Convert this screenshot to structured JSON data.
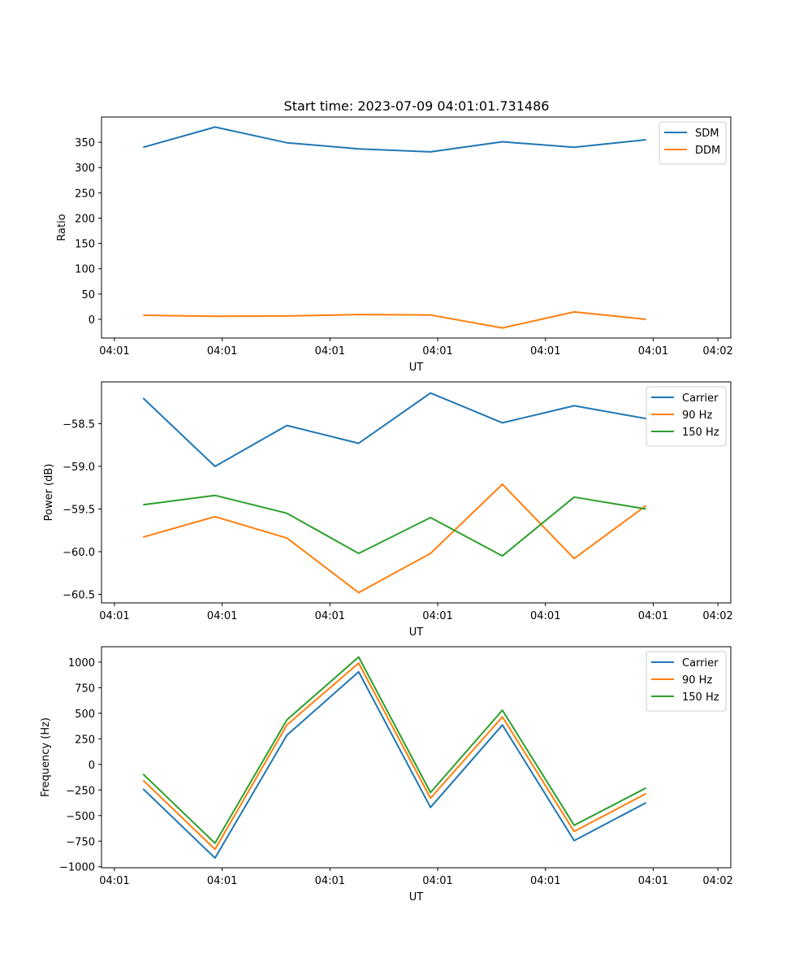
{
  "figure": {
    "title": "Start time: 2023-07-09 04:01:01.731486"
  },
  "colors": {
    "blue": "#1f77b4",
    "orange": "#ff7f0e",
    "green": "#2ca02c"
  },
  "chart_data": [
    {
      "type": "line",
      "title": "Start time: 2023-07-09 04:01:01.731486",
      "xlabel": "UT",
      "ylabel": "Ratio",
      "x": [
        1,
        2,
        3,
        4,
        5,
        6,
        7,
        8
      ],
      "xlim": [
        0.42,
        9.18
      ],
      "xticks": [
        0.6,
        2.1,
        3.6,
        5.1,
        6.6,
        8.1,
        9.0
      ],
      "xticklabels": [
        "04:01",
        "04:01",
        "04:01",
        "04:01",
        "04:01",
        "04:01",
        "04:02"
      ],
      "ylim": [
        -37,
        400
      ],
      "yticks": [
        0,
        50,
        100,
        150,
        200,
        250,
        300,
        350
      ],
      "yticklabels": [
        "0",
        "50",
        "100",
        "150",
        "200",
        "250",
        "300",
        "350"
      ],
      "legend": "top-right",
      "series": [
        {
          "name": "SDM",
          "color": "#1f77b4",
          "values": [
            340,
            380,
            349,
            337,
            331,
            351,
            340,
            355
          ]
        },
        {
          "name": "DDM",
          "color": "#ff7f0e",
          "values": [
            8,
            6,
            6.5,
            9.5,
            8.5,
            -17,
            14.5,
            0
          ]
        }
      ]
    },
    {
      "type": "line",
      "title": "",
      "xlabel": "UT",
      "ylabel": "Power (dB)",
      "x": [
        1,
        2,
        3,
        4,
        5,
        6,
        7,
        8
      ],
      "xlim": [
        0.42,
        9.18
      ],
      "xticks": [
        0.6,
        2.1,
        3.6,
        5.1,
        6.6,
        8.1,
        9.0
      ],
      "xticklabels": [
        "04:01",
        "04:01",
        "04:01",
        "04:01",
        "04:01",
        "04:01",
        "04:02"
      ],
      "ylim": [
        -60.6,
        -58.01
      ],
      "yticks": [
        -60.5,
        -60.0,
        -59.5,
        -59.0,
        -58.5
      ],
      "yticklabels": [
        "−60.5",
        "−60.0",
        "−59.5",
        "−59.0",
        "−58.5"
      ],
      "legend": "top-right",
      "series": [
        {
          "name": "Carrier",
          "color": "#1f77b4",
          "values": [
            -58.2,
            -59.0,
            -58.52,
            -58.73,
            -58.14,
            -58.49,
            -58.29,
            -58.44
          ]
        },
        {
          "name": "90 Hz",
          "color": "#ff7f0e",
          "values": [
            -59.83,
            -59.59,
            -59.84,
            -60.48,
            -60.02,
            -59.21,
            -60.08,
            -59.46
          ]
        },
        {
          "name": "150 Hz",
          "color": "#2ca02c",
          "values": [
            -59.45,
            -59.34,
            -59.55,
            -60.02,
            -59.6,
            -60.05,
            -59.36,
            -59.5
          ]
        }
      ]
    },
    {
      "type": "line",
      "title": "",
      "xlabel": "UT",
      "ylabel": "Frequency (Hz)",
      "x": [
        1,
        2,
        3,
        4,
        5,
        6,
        7,
        8
      ],
      "xlim": [
        0.42,
        9.18
      ],
      "xticks": [
        0.6,
        2.1,
        3.6,
        5.1,
        6.6,
        8.1,
        9.0
      ],
      "xticklabels": [
        "04:01",
        "04:01",
        "04:01",
        "04:01",
        "04:01",
        "04:01",
        "04:02"
      ],
      "ylim": [
        -1010,
        1150
      ],
      "yticks": [
        -1000,
        -750,
        -500,
        -250,
        0,
        250,
        500,
        750,
        1000
      ],
      "yticklabels": [
        "−1000",
        "−750",
        "−500",
        "−250",
        "0",
        "250",
        "500",
        "750",
        "1000"
      ],
      "legend": "top-right",
      "series": [
        {
          "name": "Carrier",
          "color": "#1f77b4",
          "values": [
            -240,
            -915,
            285,
            905,
            -420,
            385,
            -745,
            -375
          ]
        },
        {
          "name": "90 Hz",
          "color": "#ff7f0e",
          "values": [
            -155,
            -830,
            385,
            990,
            -330,
            465,
            -655,
            -285
          ]
        },
        {
          "name": "150 Hz",
          "color": "#2ca02c",
          "values": [
            -95,
            -770,
            435,
            1050,
            -275,
            530,
            -595,
            -230
          ]
        }
      ]
    }
  ]
}
